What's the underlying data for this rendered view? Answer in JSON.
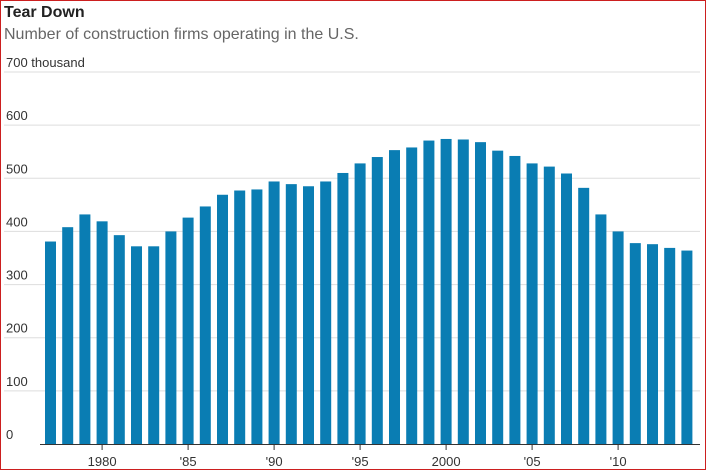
{
  "header": {
    "title": "Tear Down",
    "subtitle": "Number of construction firms operating in the U.S."
  },
  "colors": {
    "bar": "#0a7db3",
    "grid": "#dddddd",
    "axis": "#333333",
    "border": "#cc1f1f"
  },
  "chart_data": {
    "type": "bar",
    "title": "Tear Down",
    "subtitle": "Number of construction firms operating in the U.S.",
    "xlabel": "",
    "ylabel": "",
    "unit_label": "700 thousand",
    "ylim": [
      0,
      700
    ],
    "y_ticks": [
      {
        "value": 0,
        "label": "0"
      },
      {
        "value": 100,
        "label": "100"
      },
      {
        "value": 200,
        "label": "200"
      },
      {
        "value": 300,
        "label": "300"
      },
      {
        "value": 400,
        "label": "400"
      },
      {
        "value": 500,
        "label": "500"
      },
      {
        "value": 600,
        "label": "600"
      },
      {
        "value": 700,
        "label": "700 thousand"
      }
    ],
    "x_ticks": [
      {
        "year": 1980,
        "label": "1980"
      },
      {
        "year": 1985,
        "label": "'85"
      },
      {
        "year": 1990,
        "label": "'90"
      },
      {
        "year": 1995,
        "label": "'95"
      },
      {
        "year": 2000,
        "label": "2000"
      },
      {
        "year": 2005,
        "label": "'05"
      },
      {
        "year": 2010,
        "label": "'10"
      }
    ],
    "grid": true,
    "categories": [
      1977,
      1978,
      1979,
      1980,
      1981,
      1982,
      1983,
      1984,
      1985,
      1986,
      1987,
      1988,
      1989,
      1990,
      1991,
      1992,
      1993,
      1994,
      1995,
      1996,
      1997,
      1998,
      1999,
      2000,
      2001,
      2002,
      2003,
      2004,
      2005,
      2006,
      2007,
      2008,
      2009,
      2010,
      2011,
      2012,
      2013,
      2014
    ],
    "values": [
      381,
      408,
      432,
      419,
      393,
      372,
      372,
      400,
      426,
      447,
      469,
      477,
      479,
      494,
      489,
      485,
      494,
      510,
      528,
      540,
      553,
      558,
      571,
      574,
      573,
      568,
      552,
      542,
      528,
      522,
      509,
      482,
      432,
      400,
      378,
      376,
      369,
      364
    ]
  }
}
